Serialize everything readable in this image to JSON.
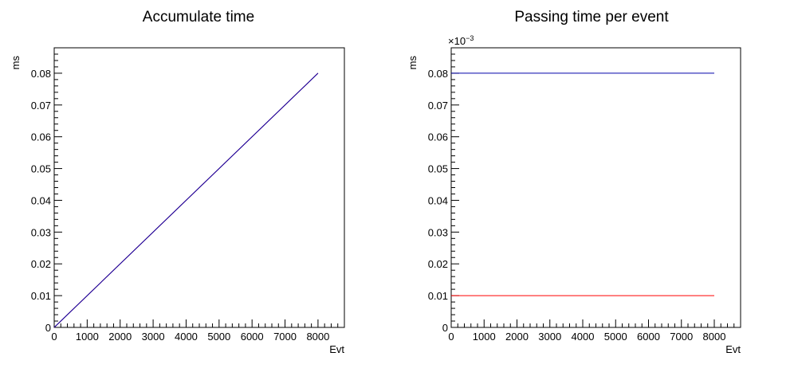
{
  "chart_data": [
    {
      "type": "line",
      "title": "Accumulate time",
      "xlabel": "Evt",
      "ylabel": "ms",
      "xlim": [
        0,
        8800
      ],
      "ylim": [
        0,
        0.088
      ],
      "x_ticks": [
        0,
        1000,
        2000,
        3000,
        4000,
        5000,
        6000,
        7000,
        8000
      ],
      "x_tick_labels": [
        "0",
        "1000",
        "2000",
        "3000",
        "4000",
        "5000",
        "6000",
        "7000",
        "8000"
      ],
      "y_ticks": [
        0,
        0.01,
        0.02,
        0.03,
        0.04,
        0.05,
        0.06,
        0.07,
        0.08
      ],
      "y_tick_labels": [
        "0",
        "0.01",
        "0.02",
        "0.03",
        "0.04",
        "0.05",
        "0.06",
        "0.07",
        "0.08"
      ],
      "exponent_label": "",
      "series": [
        {
          "color": "#ff0000",
          "x": [
            0,
            8000
          ],
          "y": [
            0,
            0.08
          ]
        },
        {
          "color": "#0000aa",
          "x": [
            0,
            8000
          ],
          "y": [
            0,
            0.08
          ]
        }
      ],
      "grid": false,
      "legend": "none"
    },
    {
      "type": "line",
      "title": "Passing time per event",
      "xlabel": "Evt",
      "ylabel": "ms",
      "xlim": [
        0,
        8800
      ],
      "ylim": [
        0,
        0.088
      ],
      "x_ticks": [
        0,
        1000,
        2000,
        3000,
        4000,
        5000,
        6000,
        7000,
        8000
      ],
      "x_tick_labels": [
        "0",
        "1000",
        "2000",
        "3000",
        "4000",
        "5000",
        "6000",
        "7000",
        "8000"
      ],
      "y_ticks": [
        0,
        0.01,
        0.02,
        0.03,
        0.04,
        0.05,
        0.06,
        0.07,
        0.08
      ],
      "y_tick_labels": [
        "0",
        "0.01",
        "0.02",
        "0.03",
        "0.04",
        "0.05",
        "0.06",
        "0.07",
        "0.08"
      ],
      "exponent_label": "×10",
      "exponent_power": "−3",
      "series": [
        {
          "color": "#ff0000",
          "x": [
            0,
            8000
          ],
          "y": [
            0.01,
            0.01
          ]
        },
        {
          "color": "#0000aa",
          "x": [
            0,
            8000
          ],
          "y": [
            0.08,
            0.08
          ]
        }
      ],
      "grid": false,
      "legend": "none"
    }
  ]
}
